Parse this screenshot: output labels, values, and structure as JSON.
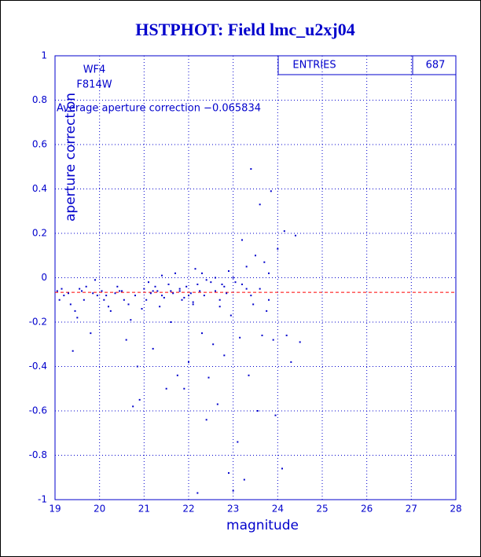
{
  "chart_data": {
    "type": "scatter",
    "title": "HSTPHOT: Field lmc_u2xj04",
    "x_label": "magnitude",
    "y_label": "aperture correction",
    "annotations": [
      "WF4",
      "F814W",
      "Average aperture correction −0.065834"
    ],
    "stats_label": "ENTRIES",
    "entries": 687,
    "average": -0.065834,
    "average_color": "#ff0000",
    "color": "#0000cc",
    "grid": true,
    "xlim": [
      19,
      28
    ],
    "xticks": [
      19,
      20,
      21,
      22,
      23,
      24,
      25,
      26,
      27,
      28
    ],
    "ylim": [
      -1,
      1
    ],
    "yticks": [
      -1,
      -0.8,
      -0.6,
      -0.4,
      -0.2,
      0,
      0.2,
      0.4,
      0.6,
      0.8,
      1
    ],
    "x": [
      19.05,
      19.1,
      19.15,
      19.2,
      19.3,
      19.35,
      19.4,
      19.45,
      19.5,
      19.55,
      19.6,
      19.65,
      19.7,
      19.8,
      19.85,
      19.9,
      19.95,
      20.05,
      20.1,
      20.15,
      20.2,
      20.25,
      20.35,
      20.4,
      20.45,
      20.5,
      20.55,
      20.6,
      20.65,
      20.7,
      20.75,
      20.8,
      20.85,
      20.9,
      20.95,
      21.0,
      21.05,
      21.1,
      21.15,
      21.2,
      21.25,
      21.3,
      21.35,
      21.4,
      21.45,
      21.5,
      21.55,
      21.6,
      21.65,
      21.7,
      21.75,
      21.8,
      21.85,
      21.9,
      21.95,
      22.0,
      22.05,
      22.1,
      22.15,
      22.2,
      22.25,
      22.3,
      22.35,
      22.4,
      22.45,
      22.5,
      22.55,
      22.6,
      22.65,
      22.7,
      22.75,
      22.8,
      22.85,
      22.9,
      22.95,
      23.0,
      23.05,
      23.1,
      23.15,
      23.2,
      23.25,
      23.3,
      23.35,
      23.4,
      23.45,
      23.5,
      23.55,
      23.6,
      23.65,
      23.7,
      23.75,
      23.8,
      23.85,
      23.9,
      23.95,
      24.0,
      24.1,
      24.15,
      24.2,
      24.3,
      24.4,
      24.5,
      21.8,
      22.0,
      22.2,
      22.4,
      22.6,
      22.8,
      23.0,
      23.2,
      22.3,
      21.6,
      21.9,
      23.4,
      23.6,
      23.8,
      22.9,
      22.1,
      21.4,
      23.3,
      22.7,
      21.2
    ],
    "values": [
      -0.06,
      -0.1,
      -0.05,
      -0.08,
      -0.07,
      -0.12,
      -0.33,
      -0.15,
      -0.18,
      -0.05,
      -0.06,
      -0.1,
      -0.04,
      -0.25,
      -0.07,
      -0.01,
      -0.08,
      -0.06,
      -0.1,
      -0.08,
      -0.13,
      -0.15,
      -0.07,
      -0.04,
      -0.06,
      -0.06,
      -0.1,
      -0.28,
      -0.12,
      -0.19,
      -0.58,
      -0.08,
      -0.4,
      -0.55,
      -0.14,
      -0.05,
      -0.1,
      -0.02,
      -0.07,
      -0.32,
      -0.04,
      -0.06,
      -0.13,
      0.01,
      -0.09,
      -0.5,
      -0.03,
      -0.2,
      -0.07,
      0.02,
      -0.44,
      -0.06,
      -0.1,
      -0.5,
      -0.04,
      -0.38,
      -0.07,
      -0.12,
      0.04,
      -0.97,
      -0.06,
      -0.25,
      -0.08,
      -0.64,
      -0.45,
      -0.02,
      -0.3,
      -0.06,
      -0.57,
      -0.13,
      -0.03,
      -0.35,
      -0.07,
      -0.88,
      -0.17,
      -0.96,
      -0.02,
      -0.74,
      -0.27,
      0.17,
      -0.91,
      -0.05,
      -0.44,
      0.49,
      -0.12,
      0.1,
      -0.6,
      0.33,
      -0.26,
      0.07,
      -0.15,
      0.02,
      0.39,
      -0.28,
      -0.62,
      0.13,
      -0.86,
      0.21,
      -0.26,
      -0.38,
      0.19,
      -0.29,
      -0.05,
      -0.08,
      -0.03,
      -0.01,
      0.0,
      -0.04,
      0.0,
      -0.03,
      0.02,
      -0.06,
      -0.09,
      -0.08,
      -0.05,
      -0.1,
      0.03,
      -0.11,
      -0.08,
      0.05,
      -0.1,
      -0.06
    ]
  }
}
